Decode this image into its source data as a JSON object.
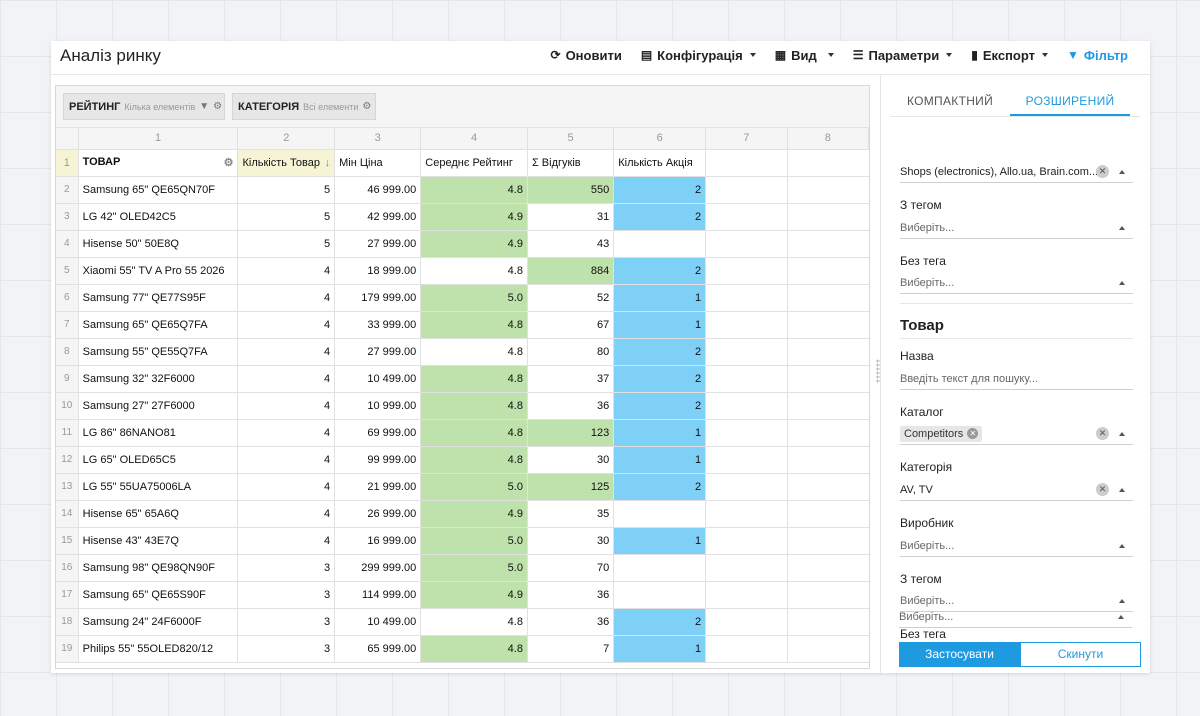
{
  "app": {
    "title": "Аналіз ринку"
  },
  "toolbar": {
    "refresh": "Оновити",
    "config": "Конфігурація",
    "view": "Вид",
    "params": "Параметри",
    "export": "Експорт",
    "filter": "Фільтр"
  },
  "filterbar": {
    "chips": [
      {
        "label": "РЕЙТИНГ",
        "sub": "Кілька елементів"
      },
      {
        "label": "КАТЕГОРІЯ",
        "sub": "Всі елементи"
      }
    ]
  },
  "grid": {
    "col_numbers": [
      "1",
      "2",
      "3",
      "4",
      "5",
      "6",
      "7",
      "8"
    ],
    "header_row_number": "1",
    "headers": [
      "ТОВАР",
      "Кількість Товар",
      "Мін Ціна",
      "Середнє Рейтинг",
      "Σ Відгуків",
      "Кількість Акція"
    ],
    "rows": [
      {
        "n": "2",
        "name": "Samsung 65\" QE65QN70F",
        "qty": "5",
        "price": "46 999.00",
        "rating": "4.8",
        "reviews": "550",
        "promo": "2",
        "rg": true,
        "vg": true
      },
      {
        "n": "3",
        "name": "LG 42\" OLED42C5",
        "qty": "5",
        "price": "42 999.00",
        "rating": "4.9",
        "reviews": "31",
        "promo": "2",
        "rg": true,
        "vg": false
      },
      {
        "n": "4",
        "name": "Hisense 50\" 50E8Q",
        "qty": "5",
        "price": "27 999.00",
        "rating": "4.9",
        "reviews": "43",
        "promo": "",
        "rg": true,
        "vg": false
      },
      {
        "n": "5",
        "name": "Xiaomi 55\" TV A Pro 55 2026",
        "qty": "4",
        "price": "18 999.00",
        "rating": "4.8",
        "reviews": "884",
        "promo": "2",
        "rg": false,
        "vg": true
      },
      {
        "n": "6",
        "name": "Samsung 77\" QE77S95F",
        "qty": "4",
        "price": "179 999.00",
        "rating": "5.0",
        "reviews": "52",
        "promo": "1",
        "rg": true,
        "vg": false
      },
      {
        "n": "7",
        "name": "Samsung 65\" QE65Q7FA",
        "qty": "4",
        "price": "33 999.00",
        "rating": "4.8",
        "reviews": "67",
        "promo": "1",
        "rg": true,
        "vg": false
      },
      {
        "n": "8",
        "name": "Samsung 55\" QE55Q7FA",
        "qty": "4",
        "price": "27 999.00",
        "rating": "4.8",
        "reviews": "80",
        "promo": "2",
        "rg": false,
        "vg": false
      },
      {
        "n": "9",
        "name": "Samsung 32\" 32F6000",
        "qty": "4",
        "price": "10 499.00",
        "rating": "4.8",
        "reviews": "37",
        "promo": "2",
        "rg": true,
        "vg": false
      },
      {
        "n": "10",
        "name": "Samsung 27\" 27F6000",
        "qty": "4",
        "price": "10 999.00",
        "rating": "4.8",
        "reviews": "36",
        "promo": "2",
        "rg": true,
        "vg": false
      },
      {
        "n": "11",
        "name": "LG 86\" 86NANO81",
        "qty": "4",
        "price": "69 999.00",
        "rating": "4.8",
        "reviews": "123",
        "promo": "1",
        "rg": true,
        "vg": true
      },
      {
        "n": "12",
        "name": "LG 65\" OLED65C5",
        "qty": "4",
        "price": "99 999.00",
        "rating": "4.8",
        "reviews": "30",
        "promo": "1",
        "rg": true,
        "vg": false
      },
      {
        "n": "13",
        "name": "LG 55\" 55UA75006LA",
        "qty": "4",
        "price": "21 999.00",
        "rating": "5.0",
        "reviews": "125",
        "promo": "2",
        "rg": true,
        "vg": true
      },
      {
        "n": "14",
        "name": "Hisense 65\" 65A6Q",
        "qty": "4",
        "price": "26 999.00",
        "rating": "4.9",
        "reviews": "35",
        "promo": "",
        "rg": true,
        "vg": false
      },
      {
        "n": "15",
        "name": "Hisense 43\" 43E7Q",
        "qty": "4",
        "price": "16 999.00",
        "rating": "5.0",
        "reviews": "30",
        "promo": "1",
        "rg": true,
        "vg": false
      },
      {
        "n": "16",
        "name": "Samsung 98\" QE98QN90F",
        "qty": "3",
        "price": "299 999.00",
        "rating": "5.0",
        "reviews": "70",
        "promo": "",
        "rg": true,
        "vg": false
      },
      {
        "n": "17",
        "name": "Samsung 65\" QE65S90F",
        "qty": "3",
        "price": "114 999.00",
        "rating": "4.9",
        "reviews": "36",
        "promo": "",
        "rg": true,
        "vg": false
      },
      {
        "n": "18",
        "name": "Samsung 24\" 24F6000F",
        "qty": "3",
        "price": "10 499.00",
        "rating": "4.8",
        "reviews": "36",
        "promo": "2",
        "rg": false,
        "vg": false
      },
      {
        "n": "19",
        "name": "Philips 55\" 55OLED820/12",
        "qty": "3",
        "price": "65 999.00",
        "rating": "4.8",
        "reviews": "7",
        "promo": "1",
        "rg": true,
        "vg": false
      }
    ]
  },
  "panel": {
    "tabs": [
      "КОМПАКТНИЙ",
      "РОЗШИРЕНИЙ"
    ],
    "shops_value": "Shops (electronics), Allo.ua, Brain.com...",
    "with_tag_label": "З тегом",
    "with_tag_ph": "Виберіть...",
    "without_tag_label": "Без тега",
    "without_tag_ph": "Виберіть...",
    "product_section": "Товар",
    "name_label": "Назва",
    "name_ph": "Введіть текст для пошуку...",
    "catalog_label": "Каталог",
    "catalog_tag": "Competitors",
    "category_label": "Категорія",
    "category_value": "AV, TV",
    "maker_label": "Виробник",
    "maker_ph": "Виберіть...",
    "with_tag2_label": "З тегом",
    "with_tag2_ph": "Виберіть...",
    "without_tag2_label": "Без тега",
    "without_tag2_ph": "Виберіть...",
    "apply": "Застосувати",
    "reset": "Скинути"
  },
  "colors": {
    "accent": "#1e9be0",
    "green_cell": "#bfe2ad",
    "blue_cell": "#7fd0f7"
  }
}
